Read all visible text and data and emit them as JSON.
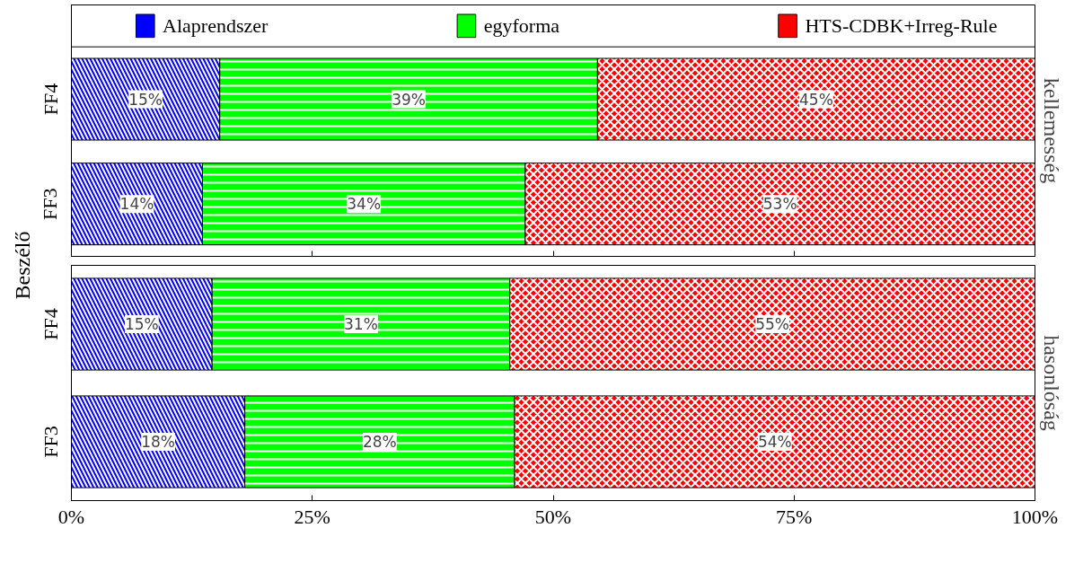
{
  "chart_data": [
    {
      "type": "bar",
      "orientation": "horizontal",
      "stacked": true,
      "title": "kellemesség",
      "ylabel": "Beszélő",
      "categories": [
        "FF4",
        "FF3"
      ],
      "legend": "top",
      "grid": false,
      "tick_labels": "y",
      "xlim": [
        0,
        100
      ],
      "xticks": [
        {
          "value": 0,
          "label": null
        },
        {
          "value": 25,
          "label": null
        },
        {
          "value": 50,
          "label": null
        },
        {
          "value": 75,
          "label": null
        },
        {
          "value": 100,
          "label": null
        }
      ],
      "series": [
        {
          "name": "Alaprendszer",
          "color": "#0000ff",
          "values": [
            15.4,
            13.6
          ],
          "value_labels": [
            "15%",
            "14%"
          ]
        },
        {
          "name": "egyforma",
          "color": "#00ff00",
          "values": [
            39.2,
            33.5
          ],
          "value_labels": [
            "39%",
            "34%"
          ]
        },
        {
          "name": "HTS-CDBK+Irreg-Rule",
          "color": "#ff0000",
          "values": [
            45.4,
            52.9
          ],
          "value_labels": [
            "45%",
            "53%"
          ]
        }
      ]
    },
    {
      "type": "bar",
      "orientation": "horizontal",
      "stacked": true,
      "title": "hasonlóság",
      "categories": [
        "FF4",
        "FF3"
      ],
      "grid": false,
      "xlim": [
        0,
        100
      ],
      "xticks": [
        {
          "value": 0,
          "label": "0%"
        },
        {
          "value": 25,
          "label": "25%"
        },
        {
          "value": 50,
          "label": "50%"
        },
        {
          "value": 75,
          "label": "75%"
        },
        {
          "value": 100,
          "label": "100%"
        }
      ],
      "series": [
        {
          "color": "#0000ff",
          "values": [
            14.6,
            18.0
          ],
          "value_labels": [
            "15%",
            "18%"
          ]
        },
        {
          "color": "#00ff00",
          "values": [
            30.9,
            28.0
          ],
          "value_labels": [
            "31%",
            "28%"
          ]
        },
        {
          "color": "#ff0000",
          "values": [
            54.5,
            54.0
          ],
          "value_labels": [
            "55%",
            "54%"
          ]
        }
      ]
    }
  ]
}
